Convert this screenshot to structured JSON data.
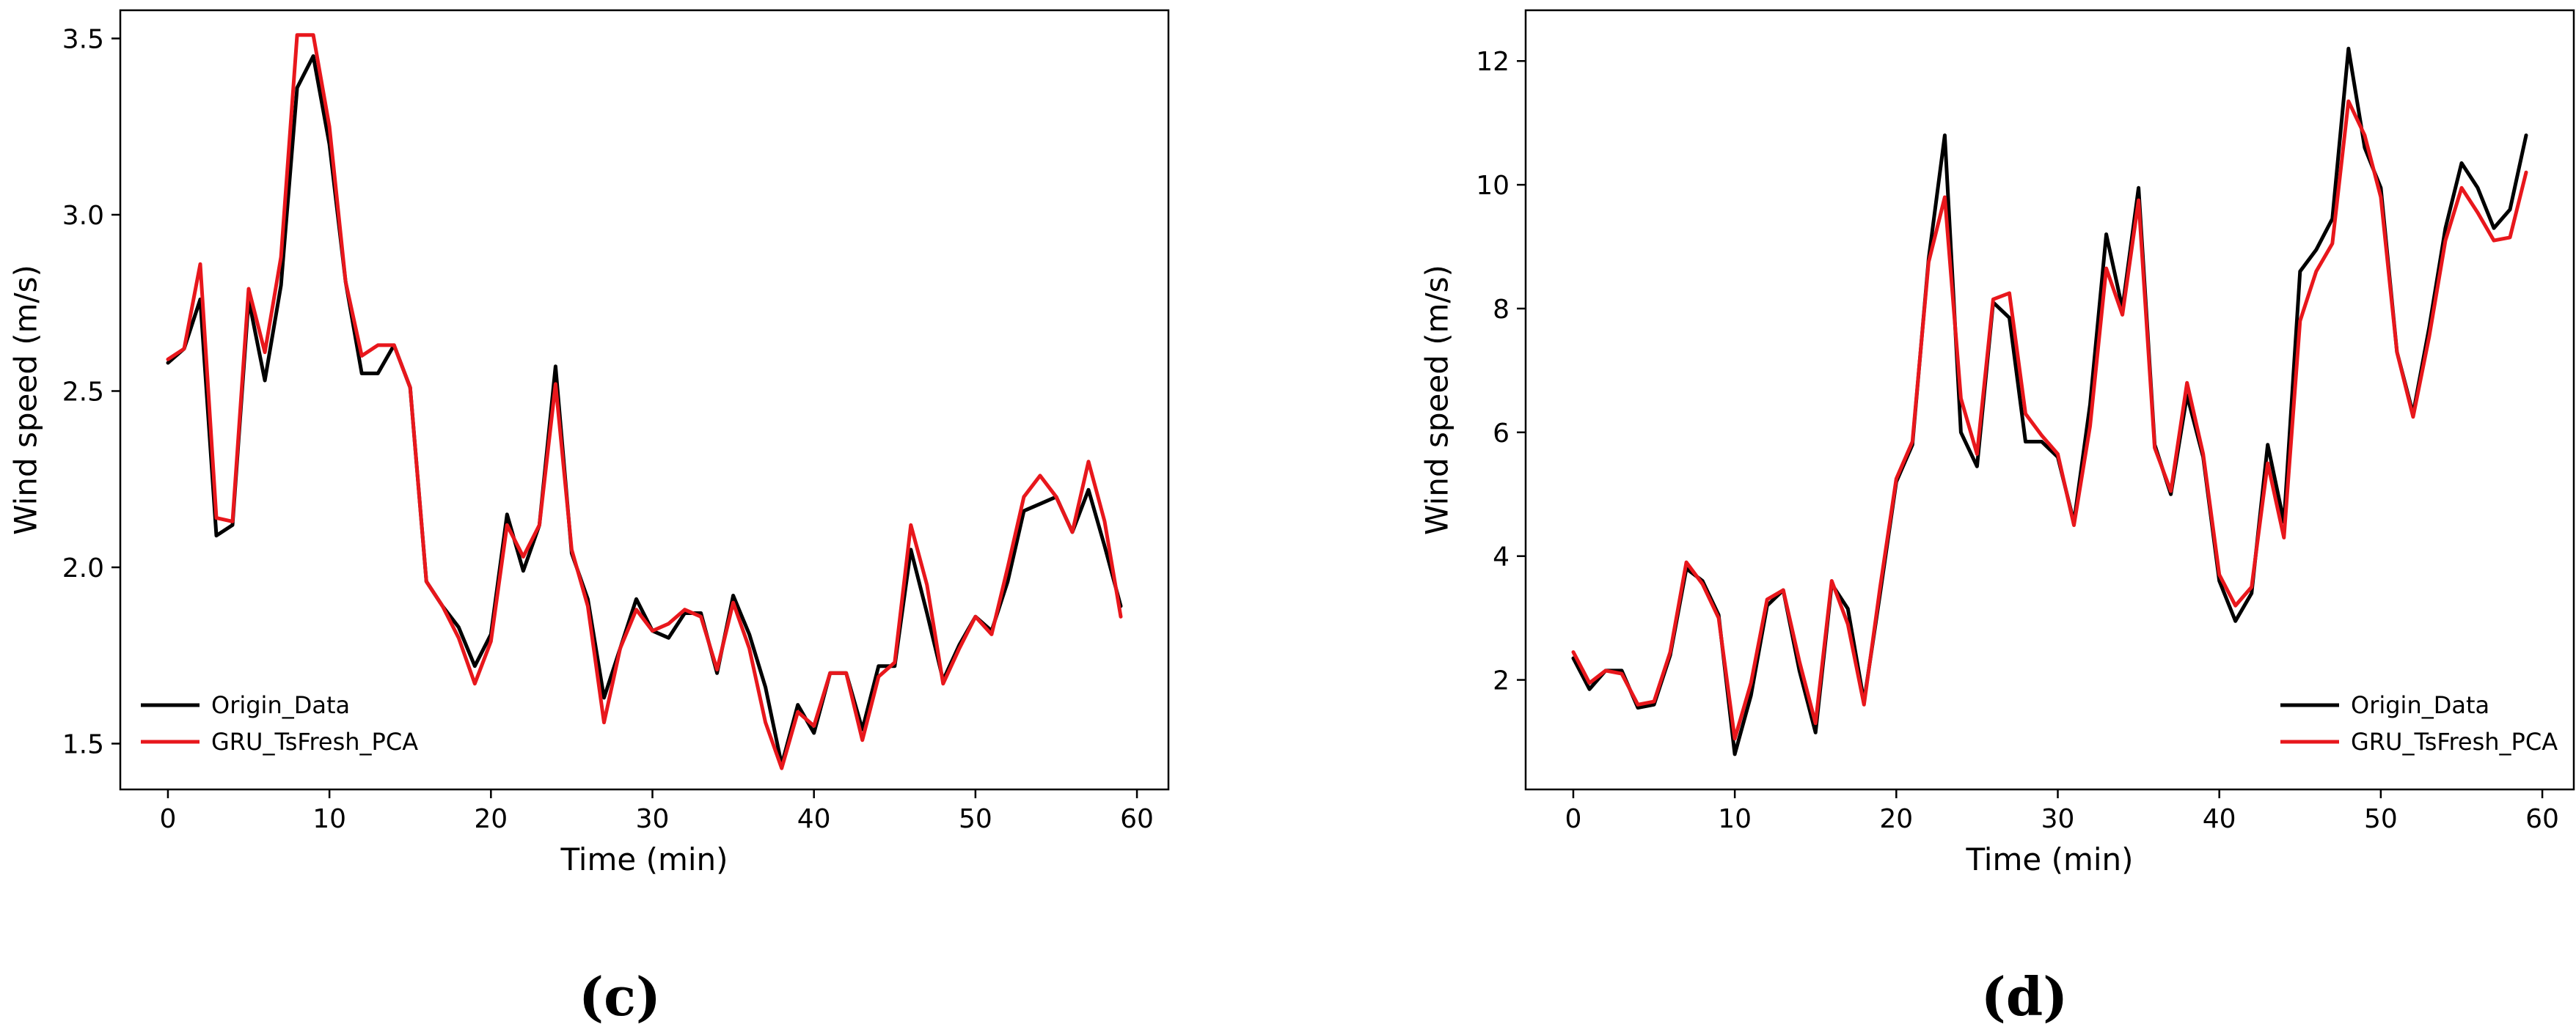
{
  "chart_data": [
    {
      "type": "line",
      "panel_label": "(c)",
      "xlabel": "Time (min)",
      "ylabel": "Wind speed (m/s)",
      "xlim": [
        -2.95,
        61.95
      ],
      "ylim": [
        1.37,
        3.58
      ],
      "xticks": [
        0,
        10,
        20,
        30,
        40,
        50,
        60
      ],
      "yticks": [
        1.5,
        2.0,
        2.5,
        3.0,
        3.5
      ],
      "ytick_labels": [
        "1.5",
        "2.0",
        "2.5",
        "3.0",
        "3.5"
      ],
      "grid": false,
      "legend_position": "bottom-left",
      "x": [
        0,
        1,
        2,
        3,
        4,
        5,
        6,
        7,
        8,
        9,
        10,
        11,
        12,
        13,
        14,
        15,
        16,
        17,
        18,
        19,
        20,
        21,
        22,
        23,
        24,
        25,
        26,
        27,
        28,
        29,
        30,
        31,
        32,
        33,
        34,
        35,
        36,
        37,
        38,
        39,
        40,
        41,
        42,
        43,
        44,
        45,
        46,
        47,
        48,
        49,
        50,
        51,
        52,
        53,
        54,
        55,
        56,
        57,
        58,
        59
      ],
      "series": [
        {
          "name": "Origin_Data",
          "color": "#000000",
          "values": [
            2.58,
            2.62,
            2.76,
            2.09,
            2.12,
            2.76,
            2.53,
            2.8,
            3.36,
            3.45,
            3.2,
            2.81,
            2.55,
            2.55,
            2.63,
            2.51,
            1.96,
            1.89,
            1.83,
            1.72,
            1.81,
            2.15,
            1.99,
            2.12,
            2.57,
            2.04,
            1.91,
            1.63,
            1.77,
            1.91,
            1.82,
            1.8,
            1.87,
            1.87,
            1.7,
            1.92,
            1.81,
            1.66,
            1.44,
            1.61,
            1.53,
            1.7,
            1.7,
            1.54,
            1.72,
            1.72,
            2.05,
            1.87,
            1.68,
            1.78,
            1.86,
            1.82,
            1.96,
            2.16,
            2.18,
            2.2,
            2.1,
            2.22,
            2.06,
            1.89
          ]
        },
        {
          "name": "GRU_TsFresh_PCA",
          "color": "#e8171c",
          "values": [
            2.59,
            2.62,
            2.86,
            2.14,
            2.13,
            2.79,
            2.61,
            2.88,
            3.51,
            3.51,
            3.25,
            2.81,
            2.6,
            2.63,
            2.63,
            2.51,
            1.96,
            1.89,
            1.8,
            1.67,
            1.79,
            2.12,
            2.03,
            2.12,
            2.52,
            2.05,
            1.89,
            1.56,
            1.77,
            1.88,
            1.82,
            1.84,
            1.88,
            1.86,
            1.71,
            1.9,
            1.77,
            1.56,
            1.43,
            1.59,
            1.55,
            1.7,
            1.7,
            1.51,
            1.69,
            1.73,
            2.12,
            1.95,
            1.67,
            1.77,
            1.86,
            1.81,
            2.0,
            2.2,
            2.26,
            2.2,
            2.1,
            2.3,
            2.13,
            1.86
          ]
        }
      ]
    },
    {
      "type": "line",
      "panel_label": "(d)",
      "xlabel": "Time (min)",
      "ylabel": "Wind speed (m/s)",
      "xlim": [
        -2.95,
        61.95
      ],
      "ylim": [
        0.23,
        12.82
      ],
      "xticks": [
        0,
        10,
        20,
        30,
        40,
        50,
        60
      ],
      "yticks": [
        2,
        4,
        6,
        8,
        10,
        12
      ],
      "ytick_labels": [
        "2",
        "4",
        "6",
        "8",
        "10",
        "12"
      ],
      "grid": false,
      "legend_position": "bottom-right",
      "x": [
        0,
        1,
        2,
        3,
        4,
        5,
        6,
        7,
        8,
        9,
        10,
        11,
        12,
        13,
        14,
        15,
        16,
        17,
        18,
        19,
        20,
        21,
        22,
        23,
        24,
        25,
        26,
        27,
        28,
        29,
        30,
        31,
        32,
        33,
        34,
        35,
        36,
        37,
        38,
        39,
        40,
        41,
        42,
        43,
        44,
        45,
        46,
        47,
        48,
        49,
        50,
        51,
        52,
        53,
        54,
        55,
        56,
        57,
        58,
        59
      ],
      "series": [
        {
          "name": "Origin_Data",
          "color": "#000000",
          "values": [
            2.35,
            1.85,
            2.15,
            2.15,
            1.55,
            1.6,
            2.4,
            3.8,
            3.6,
            3.05,
            0.8,
            1.75,
            3.2,
            3.45,
            2.15,
            1.15,
            3.55,
            3.15,
            1.65,
            3.4,
            5.2,
            5.8,
            8.8,
            10.8,
            6.0,
            5.45,
            8.1,
            7.85,
            5.85,
            5.85,
            5.6,
            4.55,
            6.45,
            9.2,
            8.0,
            9.95,
            5.8,
            5.0,
            6.6,
            5.6,
            3.6,
            2.95,
            3.4,
            5.8,
            4.55,
            8.6,
            8.95,
            9.45,
            12.2,
            10.6,
            9.95,
            7.3,
            6.3,
            7.7,
            9.3,
            10.35,
            9.95,
            9.3,
            9.6,
            10.8
          ]
        },
        {
          "name": "GRU_TsFresh_PCA",
          "color": "#e8171c",
          "values": [
            2.45,
            1.95,
            2.15,
            2.1,
            1.6,
            1.65,
            2.45,
            3.9,
            3.55,
            3.0,
            1.05,
            1.95,
            3.3,
            3.45,
            2.3,
            1.3,
            3.6,
            2.9,
            1.6,
            3.5,
            5.25,
            5.85,
            8.75,
            9.8,
            6.55,
            5.65,
            8.15,
            8.25,
            6.3,
            5.95,
            5.65,
            4.5,
            6.1,
            8.65,
            7.9,
            9.75,
            5.75,
            5.05,
            6.8,
            5.65,
            3.7,
            3.2,
            3.5,
            5.5,
            4.3,
            7.8,
            8.6,
            9.05,
            11.35,
            10.8,
            9.8,
            7.3,
            6.25,
            7.55,
            9.1,
            9.95,
            9.55,
            9.1,
            9.15,
            10.2
          ]
        }
      ]
    }
  ]
}
